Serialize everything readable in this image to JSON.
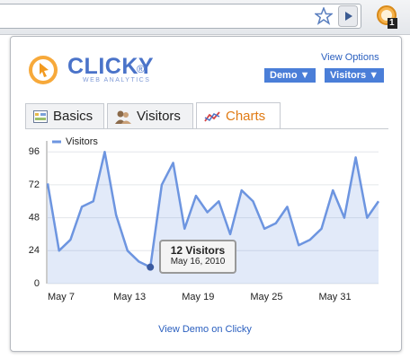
{
  "toolbar": {
    "badge": "1"
  },
  "header": {
    "logo": "CLICKY",
    "logo_mark": "®",
    "tagline": "WEB ANALYTICS",
    "view_options": "View Options",
    "site_button": "Demo ▼",
    "metric_button": "Visitors ▼"
  },
  "tabs": [
    "Basics",
    "Visitors",
    "Charts"
  ],
  "chart_data": {
    "type": "area",
    "categories": [
      "May 7",
      null,
      null,
      null,
      null,
      null,
      "May 13",
      null,
      null,
      null,
      null,
      null,
      "May 19",
      null,
      null,
      null,
      null,
      null,
      "May 25",
      null,
      null,
      null,
      null,
      null,
      "May 31",
      null,
      null,
      null,
      null,
      null
    ],
    "series": [
      {
        "name": "Visitors",
        "color": "#6d95e0",
        "values": [
          73,
          24,
          32,
          56,
          60,
          96,
          50,
          24,
          16,
          12,
          72,
          88,
          40,
          64,
          52,
          60,
          36,
          68,
          60,
          40,
          44,
          56,
          28,
          32,
          40,
          68,
          48,
          92,
          48,
          60
        ]
      }
    ],
    "ylim": [
      0,
      104
    ],
    "yticks": [
      0,
      24,
      48,
      72,
      96
    ],
    "grid": true,
    "legend": "top-left"
  },
  "tooltip": {
    "title": "12 Visitors",
    "date": "May 16, 2010"
  },
  "footer": {
    "link": "View Demo on Clicky"
  }
}
